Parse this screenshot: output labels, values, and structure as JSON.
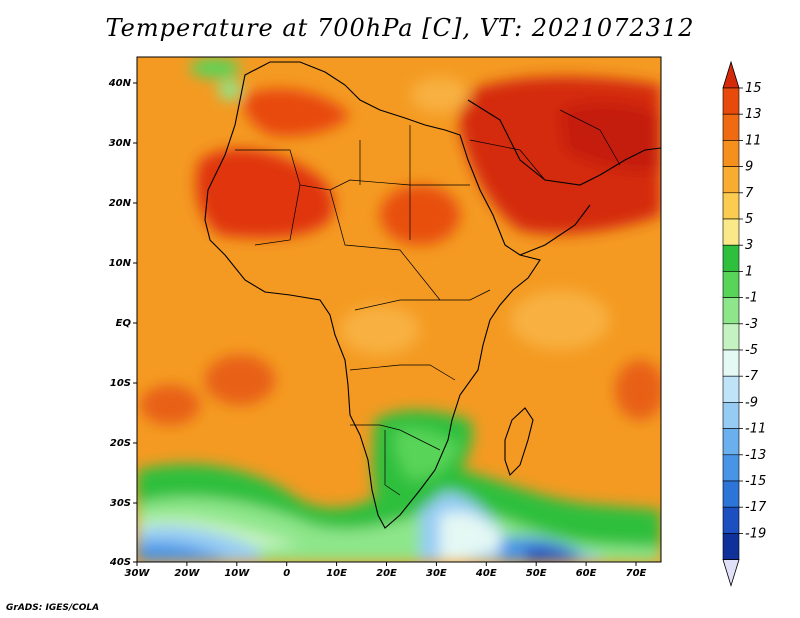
{
  "title": "Temperature at 700hPa [C], VT: 2021072312",
  "credit": "GrADS: IGES/COLA",
  "map": {
    "lon_labels": [
      "30W",
      "20W",
      "10W",
      "0",
      "10E",
      "20E",
      "30E",
      "40E",
      "50E",
      "60E",
      "70E"
    ],
    "lat_labels": [
      "40N",
      "30N",
      "20N",
      "10N",
      "EQ",
      "10S",
      "20S",
      "30S",
      "40S"
    ]
  },
  "colorbar": {
    "labels": [
      "15",
      "13",
      "11",
      "9",
      "7",
      "5",
      "3",
      "1",
      "-1",
      "-3",
      "-5",
      "-7",
      "-9",
      "-11",
      "-13",
      "-15",
      "-17",
      "-19"
    ],
    "colors": [
      "#d42a0a",
      "#e84a0c",
      "#f06a12",
      "#f5901c",
      "#f8ad30",
      "#fbcc50",
      "#fbe888",
      "#2ebf3c",
      "#58d458",
      "#8ee68a",
      "#c4f2c0",
      "#e4f8f4",
      "#bfe4f8",
      "#96ccf4",
      "#6ab0ee",
      "#4894e6",
      "#2c74d8",
      "#1c50c0",
      "#10309a",
      "#0c1c6c"
    ]
  }
}
